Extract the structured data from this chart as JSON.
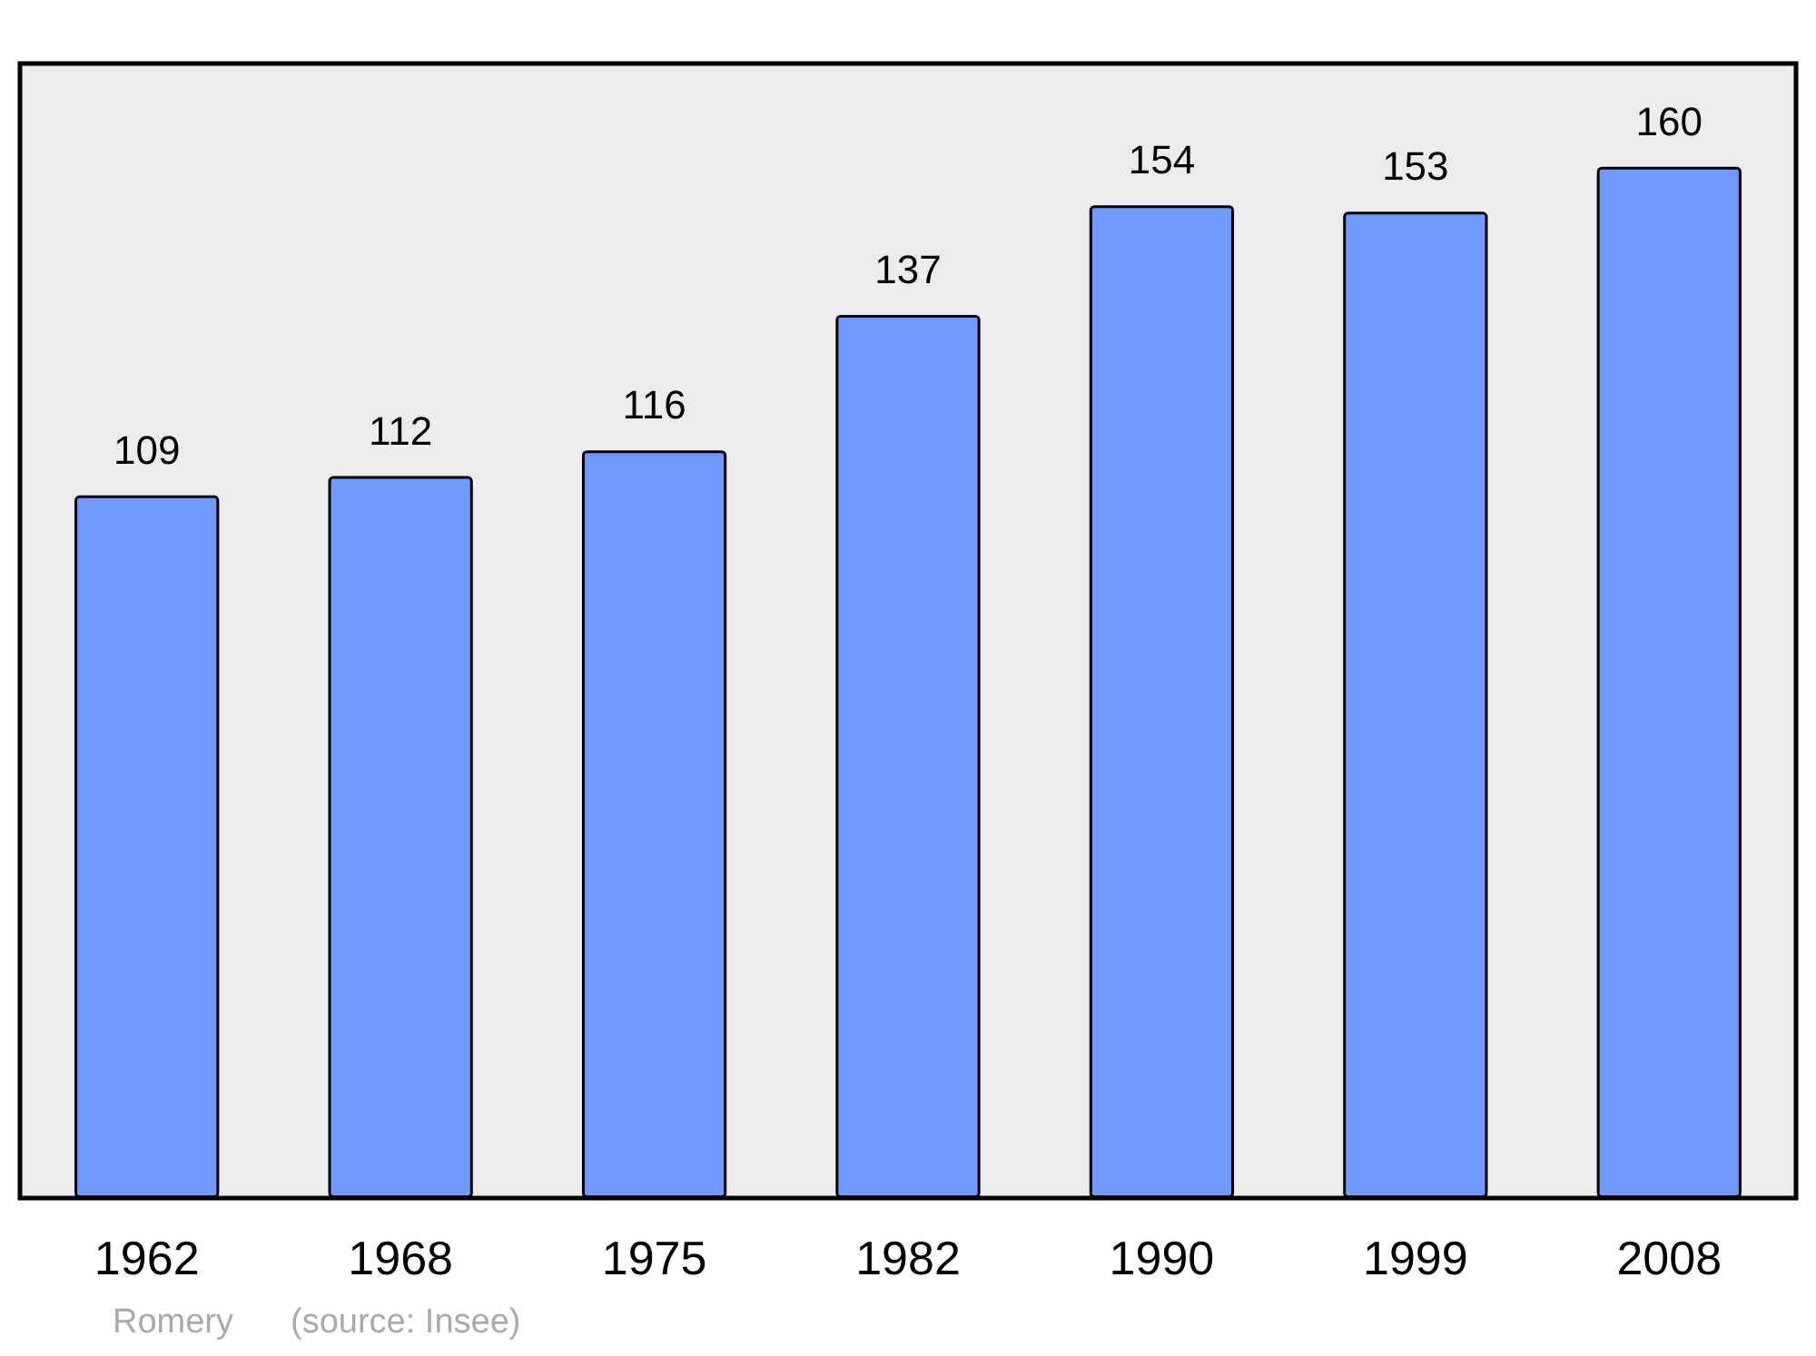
{
  "chart_data": {
    "type": "bar",
    "categories": [
      "1962",
      "1968",
      "1975",
      "1982",
      "1990",
      "1999",
      "2008"
    ],
    "values": [
      109,
      112,
      116,
      137,
      154,
      153,
      160
    ],
    "color": "#7299ff",
    "ylim": [
      0,
      176
    ],
    "data_labels": true,
    "annotations": [
      "Romery",
      "(source: Insee)"
    ]
  }
}
